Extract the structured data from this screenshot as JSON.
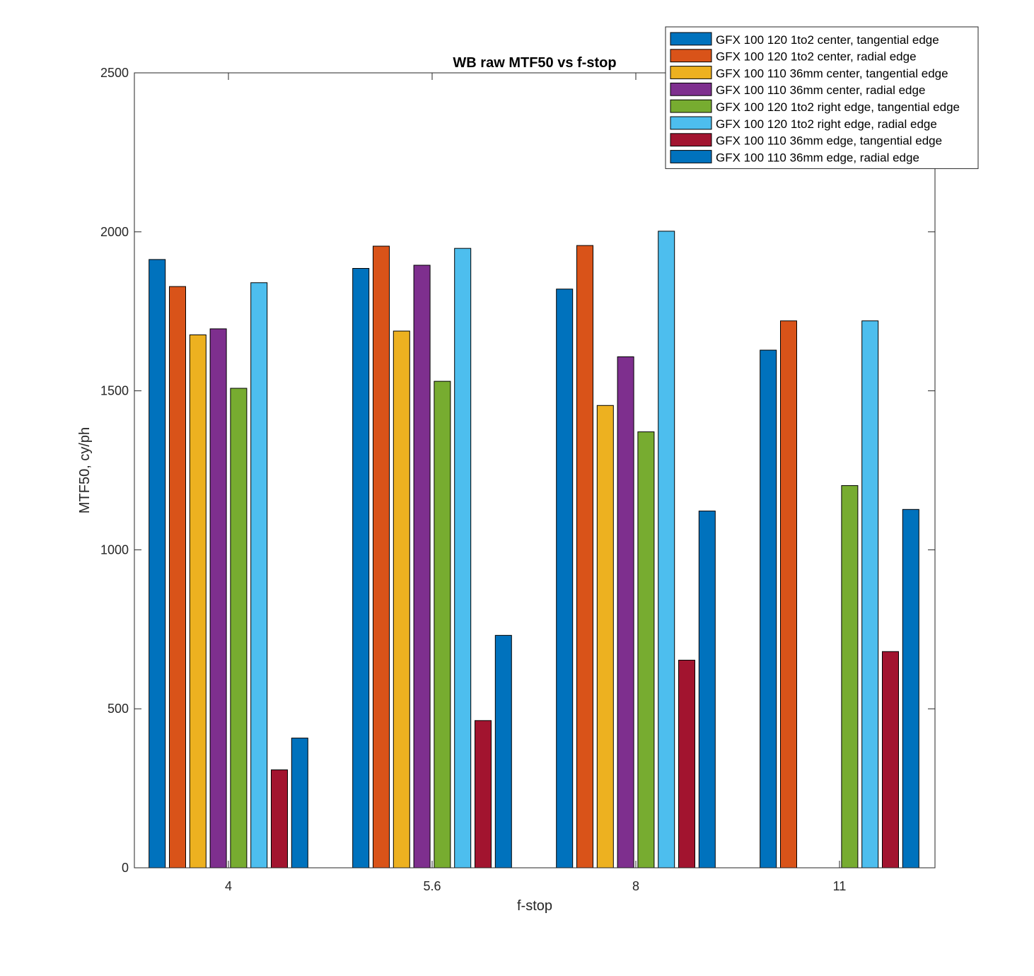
{
  "chart_data": {
    "type": "bar",
    "title": "WB raw MTF50 vs f-stop",
    "xlabel": "f-stop",
    "ylabel": "MTF50, cy/ph",
    "categories": [
      "4",
      "5.6",
      "8",
      "11"
    ],
    "ylim": [
      0,
      2500
    ],
    "yticks": [
      0,
      500,
      1000,
      1500,
      2000,
      2500
    ],
    "grid": false,
    "legend_position": "top-right",
    "series": [
      {
        "name": "GFX 100 120 1to2 center, tangential edge",
        "color": "#0072BD",
        "values": [
          1913,
          1885,
          1820,
          1628
        ]
      },
      {
        "name": "GFX 100 120 1to2 center, radial edge",
        "color": "#D95319",
        "values": [
          1828,
          1955,
          1957,
          1720
        ]
      },
      {
        "name": "GFX 100 110 36mm center, tangential edge",
        "color": "#EDB120",
        "values": [
          1676,
          1688,
          1454,
          null
        ]
      },
      {
        "name": "GFX 100 110 36mm center, radial edge",
        "color": "#7E2F8E",
        "values": [
          1695,
          1895,
          1607,
          null
        ]
      },
      {
        "name": "GFX 100 120 1to2 right edge, tangential edge",
        "color": "#77AC30",
        "values": [
          1508,
          1530,
          1371,
          1202
        ]
      },
      {
        "name": "GFX 100 120 1to2 right edge, radial edge",
        "color": "#4DBEEE",
        "values": [
          1840,
          1948,
          2002,
          1720
        ]
      },
      {
        "name": "GFX 100 110 36mm edge, tangential edge",
        "color": "#A2142F",
        "values": [
          308,
          463,
          653,
          680
        ]
      },
      {
        "name": "GFX 100 110 36mm edge, radial edge",
        "color": "#0072BD",
        "values": [
          408,
          731,
          1122,
          1127
        ]
      }
    ]
  }
}
